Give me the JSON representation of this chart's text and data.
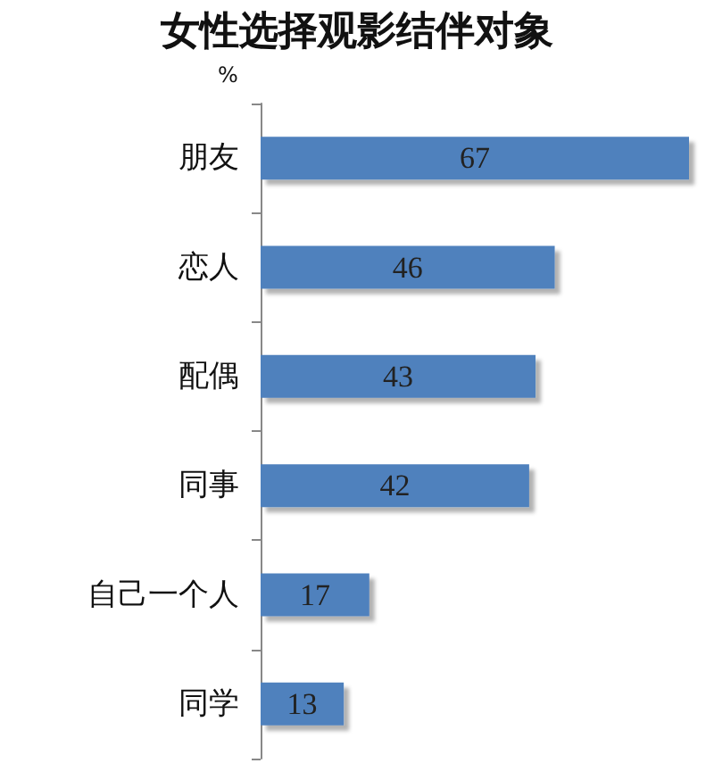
{
  "chart_data": {
    "type": "bar",
    "orientation": "horizontal",
    "title": "女性选择观影结伴对象",
    "xlabel": "%",
    "categories": [
      "朋友",
      "恋人",
      "配偶",
      "同事",
      "自己一个人",
      "同学"
    ],
    "values": [
      67,
      46,
      43,
      42,
      17,
      13
    ],
    "color": "#4f81bd",
    "data_labels": true
  }
}
